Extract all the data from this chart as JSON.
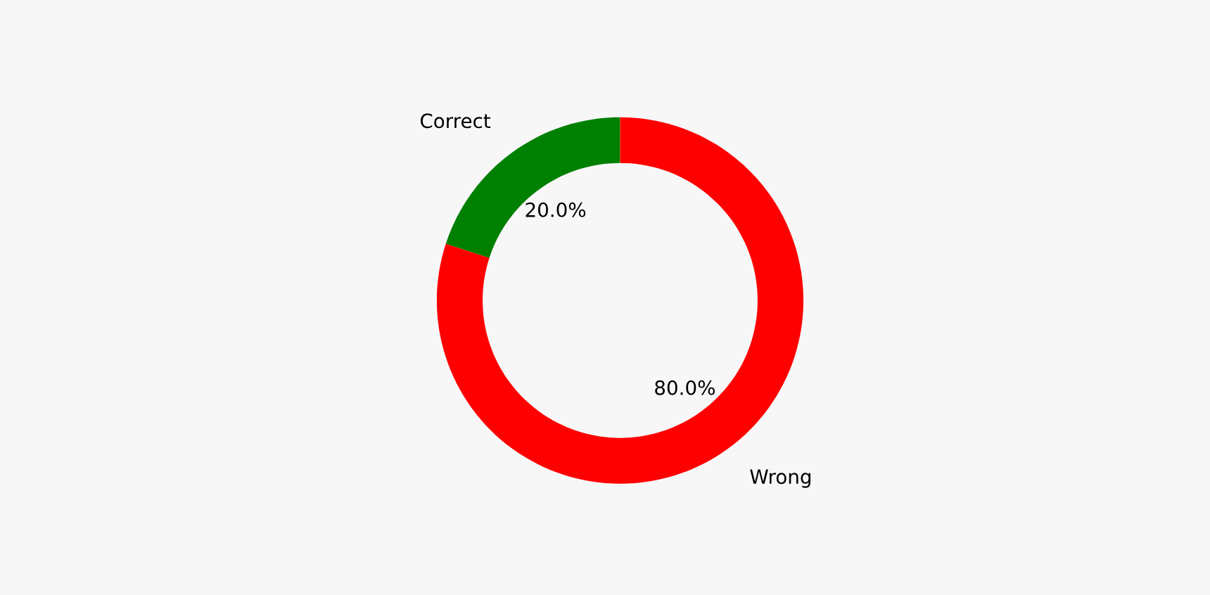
{
  "chart_data": {
    "type": "donut",
    "categories": [
      "Correct",
      "Wrong"
    ],
    "values": [
      20,
      80
    ],
    "colors": [
      "#008000",
      "#ff0000"
    ],
    "value_labels": [
      "20.0%",
      "80.0%"
    ]
  }
}
